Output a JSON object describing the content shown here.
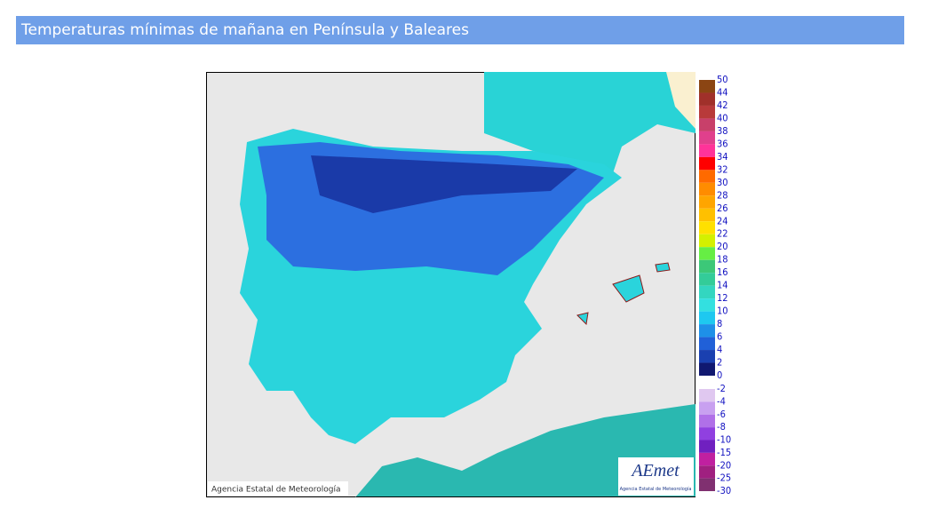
{
  "header": {
    "title": "Temperaturas mínimas de mañana en Península y Baleares"
  },
  "map": {
    "credit": "Agencia Estatal de Meteorología",
    "logo": "AEmet",
    "logo_sub": "Agencia Estatal de Meteorología"
  },
  "legend": {
    "warm": {
      "labels": [
        50,
        44,
        42,
        40,
        38,
        36,
        34,
        32,
        30,
        28,
        26,
        24,
        22,
        20,
        18,
        16,
        14,
        12,
        10,
        8,
        6,
        4,
        2,
        0
      ],
      "colors": [
        "#8b4513",
        "#a0302a",
        "#b83a3a",
        "#c8406a",
        "#e0408c",
        "#ff3399",
        "#ff0000",
        "#ff6a00",
        "#ff8c00",
        "#ffa500",
        "#ffc000",
        "#ffe000",
        "#d4f000",
        "#66ee44",
        "#3cc878",
        "#33cc99",
        "#33d6c0",
        "#33e0e0",
        "#1ec8f0",
        "#1e90e8",
        "#2060d8",
        "#1a40b0",
        "#101870"
      ]
    },
    "cold": {
      "labels": [
        -2,
        -4,
        -6,
        -8,
        -10,
        -15,
        -20,
        -25,
        -30
      ],
      "colors": [
        "#e0c8f0",
        "#c8a0f0",
        "#b070e8",
        "#9040e0",
        "#7020c0",
        "#c020a0",
        "#a02080",
        "#803070"
      ]
    }
  }
}
